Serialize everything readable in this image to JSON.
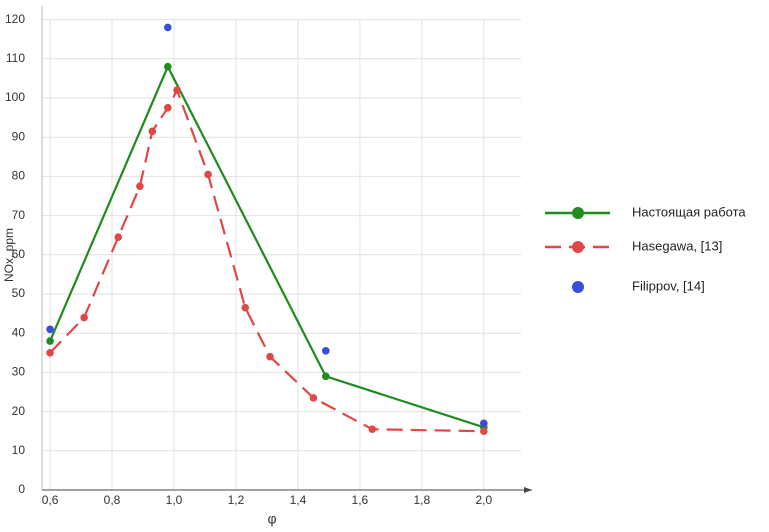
{
  "chart_data": {
    "type": "line",
    "x_label": "φ",
    "y_label": "NOx, ppm",
    "xlim": [
      0.574,
      2.12
    ],
    "ylim": [
      0,
      120
    ],
    "xticks": [
      {
        "value": 0.6,
        "label": "0,6"
      },
      {
        "value": 0.8,
        "label": "0,8"
      },
      {
        "value": 1.0,
        "label": "1,0"
      },
      {
        "value": 1.2,
        "label": "1,2"
      },
      {
        "value": 1.4,
        "label": "1,4"
      },
      {
        "value": 1.6,
        "label": "1,6"
      },
      {
        "value": 1.8,
        "label": "1,8"
      },
      {
        "value": 2.0,
        "label": "2,0"
      }
    ],
    "yticks": [
      0,
      10,
      20,
      30,
      40,
      50,
      60,
      70,
      80,
      90,
      100,
      110,
      120
    ],
    "grid": true,
    "series": [
      {
        "name": "Настоящая работа",
        "color": "#1f8c1f",
        "line_style": "solid",
        "x": [
          0.6,
          0.98,
          1.49,
          2.0
        ],
        "values": [
          38,
          108,
          29,
          16
        ]
      },
      {
        "name": "Hasegawa, [13]",
        "color": "#e04848",
        "line_style": "dashed",
        "x": [
          0.6,
          0.71,
          0.82,
          0.89,
          0.93,
          0.98,
          1.01,
          1.11,
          1.23,
          1.31,
          1.45,
          1.64,
          2.0
        ],
        "values": [
          35,
          44,
          64.5,
          77.5,
          91.5,
          97.5,
          102,
          80.5,
          46.5,
          34,
          23.5,
          15.5,
          15
        ]
      },
      {
        "name": "Filippov, [14]",
        "color": "#3a4fd6",
        "line_style": "none",
        "x": [
          0.6,
          0.98,
          1.49,
          2.0
        ],
        "values": [
          41,
          118,
          35.5,
          17
        ]
      }
    ]
  }
}
